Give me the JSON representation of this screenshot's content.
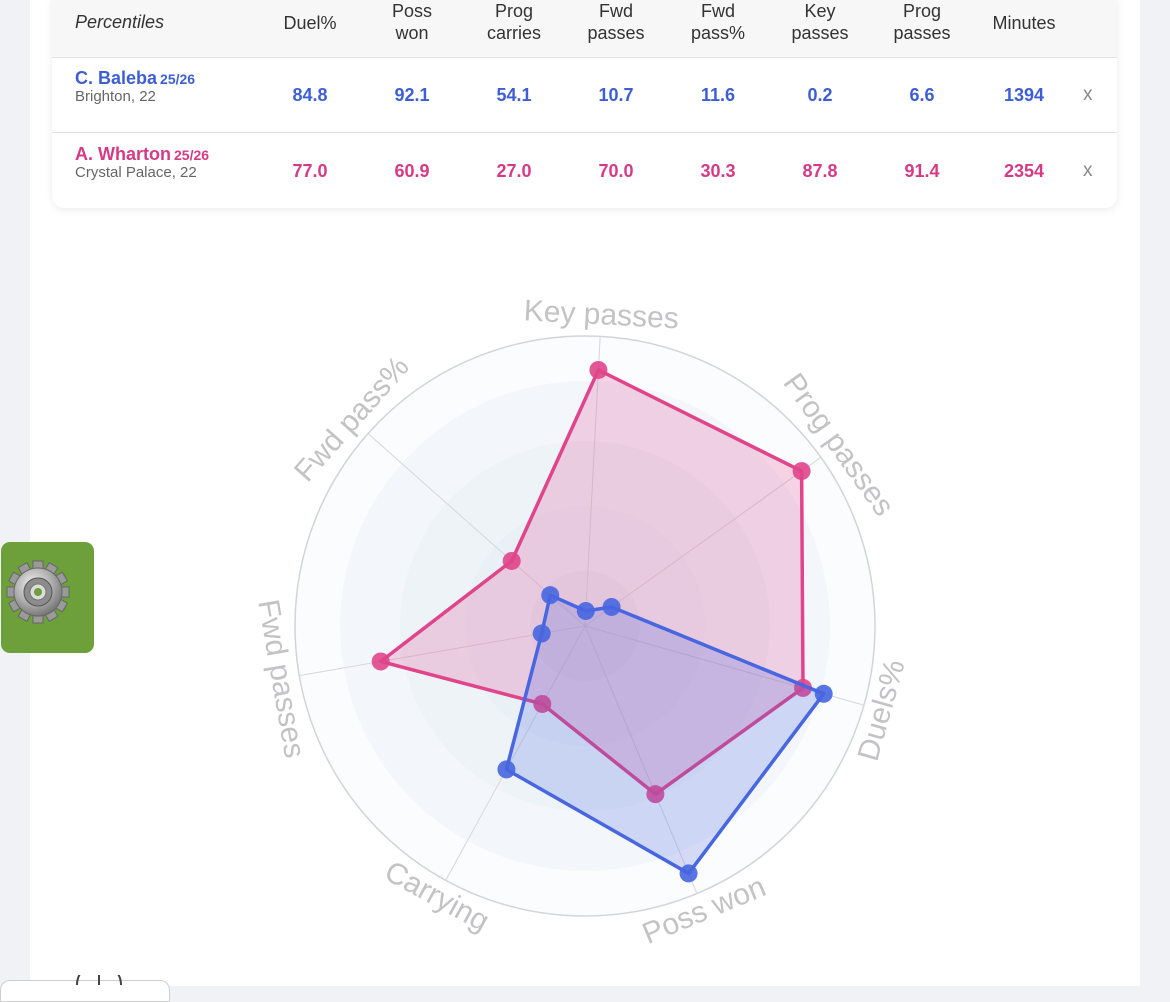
{
  "table": {
    "header": {
      "first": "Percentiles",
      "columns": [
        [
          "Duel%"
        ],
        [
          "Poss",
          "won"
        ],
        [
          "Prog",
          "carries"
        ],
        [
          "Fwd",
          "passes"
        ],
        [
          "Fwd",
          "pass%"
        ],
        [
          "Key",
          "passes"
        ],
        [
          "Prog",
          "passes"
        ],
        [
          "Minutes"
        ]
      ]
    },
    "players": [
      {
        "name": "C. Baleba",
        "season": "25/26",
        "club": "Brighton, 22",
        "values": [
          "84.8",
          "92.1",
          "54.1",
          "10.7",
          "11.6",
          "0.2",
          "6.6",
          "1394"
        ],
        "remove": "x",
        "color": "#3e5ed6"
      },
      {
        "name": "A. Wharton",
        "season": "25/26",
        "club": "Crystal Palace, 22",
        "values": [
          "77.0",
          "60.9",
          "27.0",
          "70.0",
          "30.3",
          "87.8",
          "91.4",
          "2354"
        ],
        "remove": "x",
        "color": "#d63a86"
      }
    ]
  },
  "radar": {
    "axes": [
      "Key passes",
      "Prog passes",
      "Duels%",
      "Poss won",
      "Carrying",
      "Fwd passes",
      "Fwd pass%"
    ],
    "max": 100,
    "series": [
      {
        "player": "A. Wharton",
        "color": "#e0458b",
        "values": [
          87.8,
          91.4,
          77.0,
          60.9,
          27.0,
          70.0,
          30.3
        ]
      },
      {
        "player": "C. Baleba",
        "color": "#4766e0",
        "values": [
          0.2,
          6.6,
          84.8,
          92.1,
          54.1,
          10.7,
          11.6
        ]
      }
    ]
  },
  "icons": {
    "settings": "gear-icon"
  }
}
